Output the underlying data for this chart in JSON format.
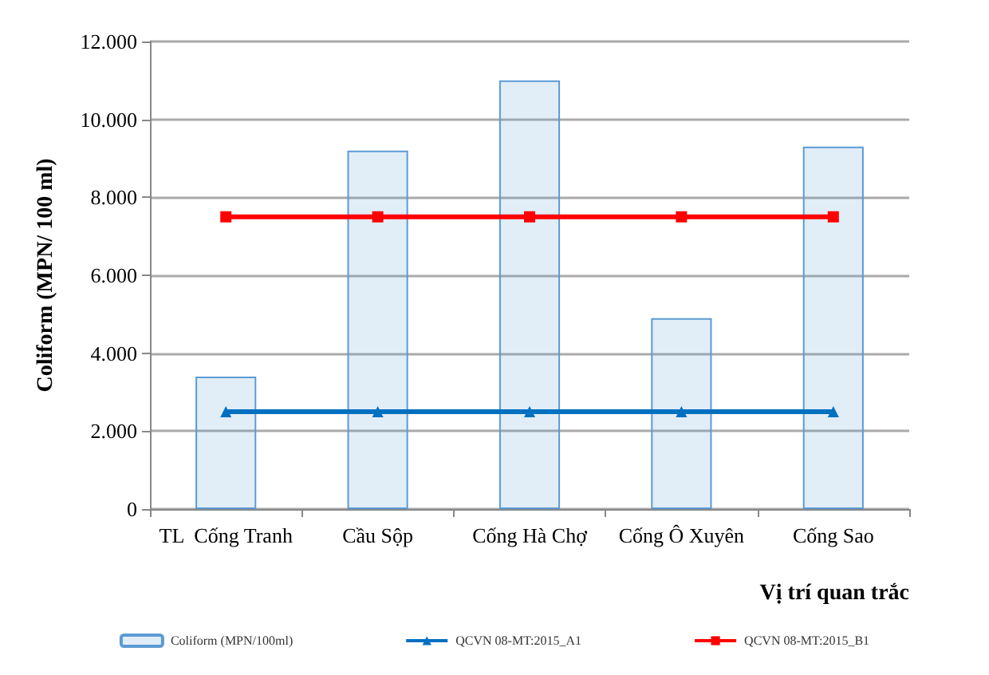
{
  "chart_data": {
    "type": "bar",
    "xlabel": "Vị trí quan trắc",
    "ylabel": "Coliform (MPN/ 100 ml)",
    "categories": [
      "TL  Cống Tranh",
      "Cầu Sộp",
      "Cống Hà Chợ",
      "Cống Ô Xuyên",
      "Cống Sao"
    ],
    "series": [
      {
        "name": "Coliform (MPN/100ml)",
        "color": "#5b9bd5",
        "values": [
          3400,
          9200,
          11000,
          4900,
          9300
        ]
      },
      {
        "name": "QCVN 08-MT:2015_A1",
        "type": "line",
        "color": "#0070c0",
        "marker": "triangle",
        "values": [
          2500,
          2500,
          2500,
          2500,
          2500
        ]
      },
      {
        "name": "QCVN 08-MT:2015_B1",
        "type": "line",
        "color": "#ff0000",
        "marker": "square",
        "values": [
          7500,
          7500,
          7500,
          7500,
          7500
        ]
      }
    ],
    "ylim": [
      0,
      12000
    ],
    "yticks": [
      {
        "value": 0,
        "label": "0"
      },
      {
        "value": 2000,
        "label": "2.000"
      },
      {
        "value": 4000,
        "label": "4.000"
      },
      {
        "value": 6000,
        "label": "6.000"
      },
      {
        "value": 8000,
        "label": "8.000"
      },
      {
        "value": 10000,
        "label": "10.000"
      },
      {
        "value": 12000,
        "label": "12.000"
      }
    ],
    "grid": "y",
    "legend": "bottom"
  }
}
